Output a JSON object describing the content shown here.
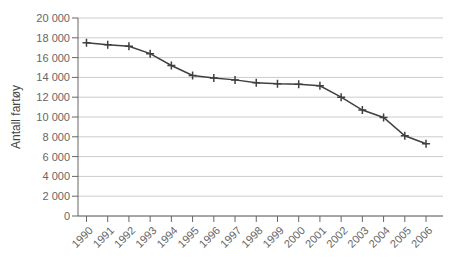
{
  "chart_data": {
    "type": "line",
    "x": [
      1990,
      1991,
      1992,
      1993,
      1994,
      1995,
      1996,
      1997,
      1998,
      1999,
      2000,
      2001,
      2002,
      2003,
      2004,
      2005,
      2006
    ],
    "values": [
      17500,
      17300,
      17150,
      16400,
      15200,
      14200,
      13950,
      13750,
      13450,
      13350,
      13300,
      13150,
      12000,
      10700,
      9950,
      8100,
      7300
    ],
    "ylabel": "Antall fartøy",
    "xlim": [
      1989.6,
      2006.8
    ],
    "xticks": [
      1990,
      1991,
      1992,
      1993,
      1994,
      1995,
      1996,
      1997,
      1998,
      1999,
      2000,
      2001,
      2002,
      2003,
      2004,
      2005,
      2006
    ],
    "ylim": [
      0,
      20000
    ],
    "yticks": [
      0,
      {
        "value": 2000,
        "label": "2 000"
      },
      {
        "value": 4000,
        "label": "4 000"
      },
      {
        "value": 6000,
        "label": "6 000"
      },
      {
        "value": 8000,
        "label": "8 000"
      },
      {
        "value": 10000,
        "label": "10 000"
      },
      {
        "value": 12000,
        "label": "12 000"
      },
      {
        "value": 14000,
        "label": "14 000"
      },
      {
        "value": 16000,
        "label": "16 000"
      },
      {
        "value": 18000,
        "label": "18 000"
      },
      {
        "value": 20000,
        "label": "20 000"
      }
    ],
    "color": "#404040",
    "marker": "+",
    "grid": true
  }
}
